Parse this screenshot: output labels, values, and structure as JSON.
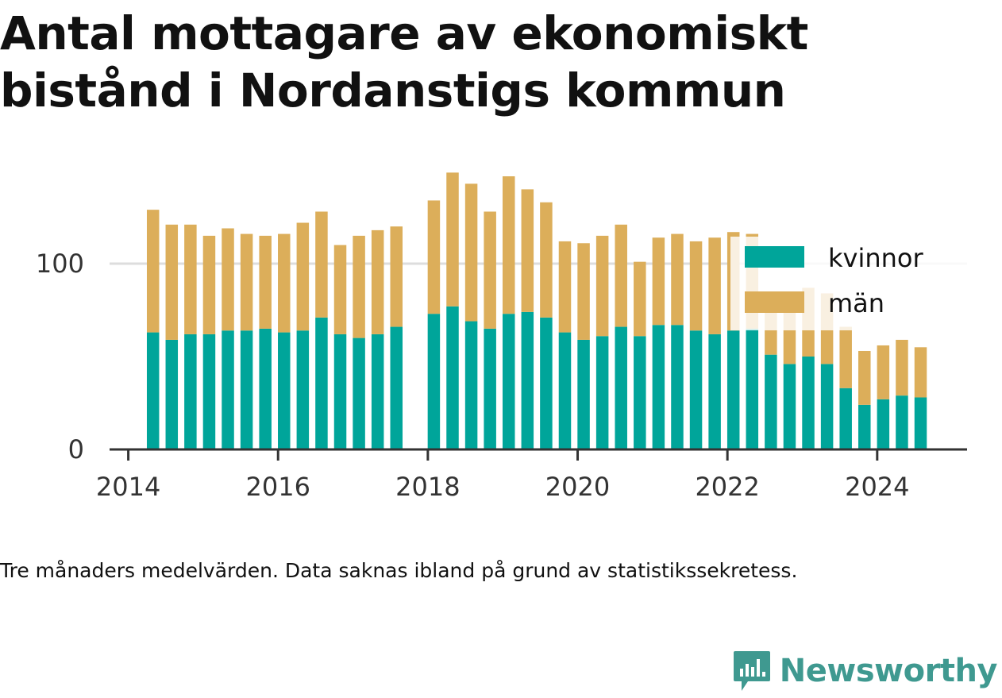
{
  "title": "Antal mottagare av ekonomiskt bistånd i Nordanstigs kommun",
  "note": "Tre månaders medelvärden. Data saknas ibland på grund av statistikssekretess.",
  "brand": {
    "name": "Newsworthy",
    "icon": "newsworthy-logo-icon",
    "color": "#3f9990"
  },
  "colors": {
    "kvinnor": "#00a59a",
    "man": "#dcae5a",
    "axis": "#333333",
    "grid": "#dddddd"
  },
  "chart_data": {
    "type": "bar",
    "stacked": true,
    "title": "Antal mottagare av ekonomiskt bistånd i Nordanstigs kommun",
    "xlabel": "",
    "ylabel": "",
    "ylim": [
      0,
      150
    ],
    "xlim": [
      2013.75,
      2025.2
    ],
    "y_ticks": [
      0,
      100
    ],
    "x_ticks": [
      "2014",
      "2016",
      "2018",
      "2020",
      "2022",
      "2024"
    ],
    "grid": "horizontal",
    "legend_position": "top-right",
    "x": [
      2014.33,
      2014.58,
      2014.83,
      2015.08,
      2015.33,
      2015.58,
      2015.83,
      2016.08,
      2016.33,
      2016.58,
      2016.83,
      2017.08,
      2017.33,
      2017.58,
      2018.08,
      2018.33,
      2018.58,
      2018.83,
      2019.08,
      2019.33,
      2019.58,
      2019.83,
      2020.08,
      2020.33,
      2020.58,
      2020.83,
      2021.08,
      2021.33,
      2021.58,
      2021.83,
      2022.08,
      2022.33,
      2022.58,
      2022.83,
      2023.08,
      2023.33,
      2023.58,
      2023.83,
      2024.08,
      2024.33,
      2024.58
    ],
    "series": [
      {
        "name": "kvinnor",
        "color": "#00a59a",
        "values": [
          63,
          59,
          62,
          62,
          64,
          64,
          65,
          63,
          64,
          71,
          62,
          60,
          62,
          66,
          73,
          77,
          69,
          65,
          73,
          74,
          71,
          63,
          59,
          61,
          66,
          61,
          67,
          67,
          64,
          62,
          64,
          65,
          51,
          46,
          50,
          46,
          33,
          24,
          27,
          29,
          28
        ]
      },
      {
        "name": "män",
        "color": "#dcae5a",
        "values": [
          66,
          62,
          59,
          53,
          55,
          52,
          50,
          53,
          58,
          57,
          48,
          55,
          56,
          54,
          61,
          72,
          74,
          63,
          74,
          66,
          62,
          49,
          52,
          54,
          55,
          40,
          47,
          49,
          48,
          52,
          53,
          51,
          34,
          33,
          37,
          38,
          33,
          29,
          29,
          30,
          27
        ]
      }
    ]
  }
}
